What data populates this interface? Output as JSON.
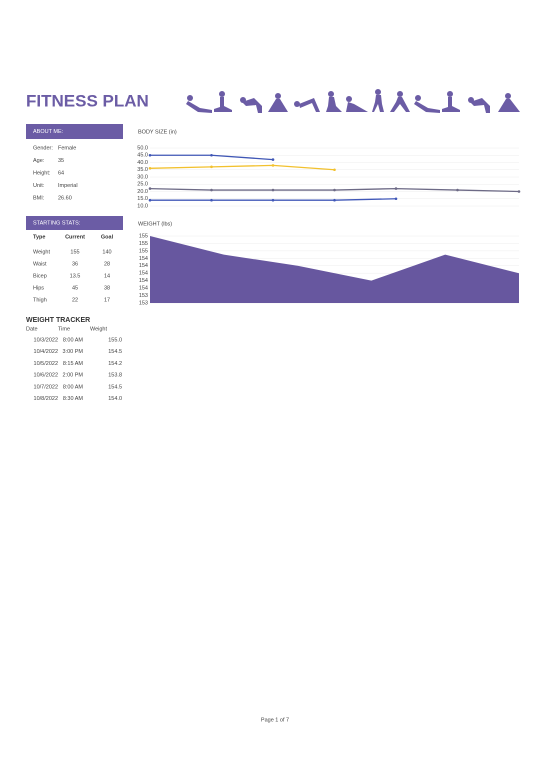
{
  "header": {
    "title": "FITNESS PLAN"
  },
  "about": {
    "title": "ABOUT ME:",
    "rows": [
      [
        "Gender:",
        "Female"
      ],
      [
        "Age:",
        "35"
      ],
      [
        "Height:",
        "64"
      ],
      [
        "Unit:",
        "Imperial"
      ],
      [
        "BMI:",
        "26.60"
      ]
    ]
  },
  "stats": {
    "title": "STARTING STATS:",
    "columns": [
      "Type",
      "Current",
      "Goal"
    ],
    "rows": [
      [
        "Weight",
        "155",
        "140"
      ],
      [
        "Waist",
        "36",
        "28"
      ],
      [
        "Bicep",
        "13.5",
        "14"
      ],
      [
        "Hips",
        "45",
        "38"
      ],
      [
        "Thigh",
        "22",
        "17"
      ]
    ]
  },
  "tracker": {
    "title": "WEIGHT TRACKER",
    "columns": [
      "Date",
      "Time",
      "Weight"
    ],
    "rows": [
      [
        "10/3/2022",
        "8:00 AM",
        "155.0"
      ],
      [
        "10/4/2022",
        "3:00 PM",
        "154.5"
      ],
      [
        "10/5/2022",
        "8:15 AM",
        "154.2"
      ],
      [
        "10/6/2022",
        "2:00 PM",
        "153.8"
      ],
      [
        "10/7/2022",
        "8:00 AM",
        "154.5"
      ],
      [
        "10/8/2022",
        "8:30 AM",
        "154.0"
      ]
    ]
  },
  "footer": {
    "page": "Page 1 of 7"
  },
  "chart_data": [
    {
      "type": "line",
      "title": "BODY SIZE (in)",
      "categories": [
        null,
        null,
        null,
        null,
        null,
        null,
        null
      ],
      "series": [
        {
          "color": "#3f56b5",
          "values": [
            45,
            45,
            42,
            null,
            null,
            null,
            null
          ]
        },
        {
          "color": "#f2c12e",
          "values": [
            36,
            37,
            38,
            35,
            null,
            null,
            null
          ]
        },
        {
          "color": "#6d6a86",
          "values": [
            22,
            21,
            21,
            21,
            22,
            21,
            20
          ]
        },
        {
          "color": "#4158b8",
          "values": [
            14,
            14,
            14,
            14,
            15,
            null,
            null
          ]
        }
      ],
      "ylim": [
        10,
        50
      ],
      "yticks": [
        {
          "value": 50,
          "label": "50.0"
        },
        {
          "value": 45,
          "label": "45.0"
        },
        {
          "value": 40,
          "label": "40.0"
        },
        {
          "value": 35,
          "label": "35.0"
        },
        {
          "value": 30,
          "label": "30.0"
        },
        {
          "value": 25,
          "label": "25.0"
        },
        {
          "value": 20,
          "label": "20.0"
        },
        {
          "value": 15,
          "label": "15.0"
        },
        {
          "value": 10,
          "label": "10.0"
        }
      ],
      "grid": true
    },
    {
      "type": "area",
      "title": "WEIGHT (lbs)",
      "categories": [
        null,
        null,
        null,
        null,
        null,
        null
      ],
      "values": [
        155.0,
        154.5,
        154.2,
        153.8,
        154.5,
        154.0
      ],
      "color": "#67579f",
      "ylim": [
        153.2,
        155.0
      ],
      "yticks": [
        155,
        {
          "value": 154.8,
          "label": "155"
        },
        {
          "value": 154.6,
          "label": "155"
        },
        {
          "value": 154.4,
          "label": "154"
        },
        {
          "value": 154.2,
          "label": "154"
        },
        154,
        {
          "value": 153.8,
          "label": "154"
        },
        {
          "value": 153.6,
          "label": "154"
        },
        {
          "value": 153.4,
          "label": "153"
        },
        {
          "value": 153.2,
          "label": "153"
        }
      ],
      "grid": true
    }
  ]
}
